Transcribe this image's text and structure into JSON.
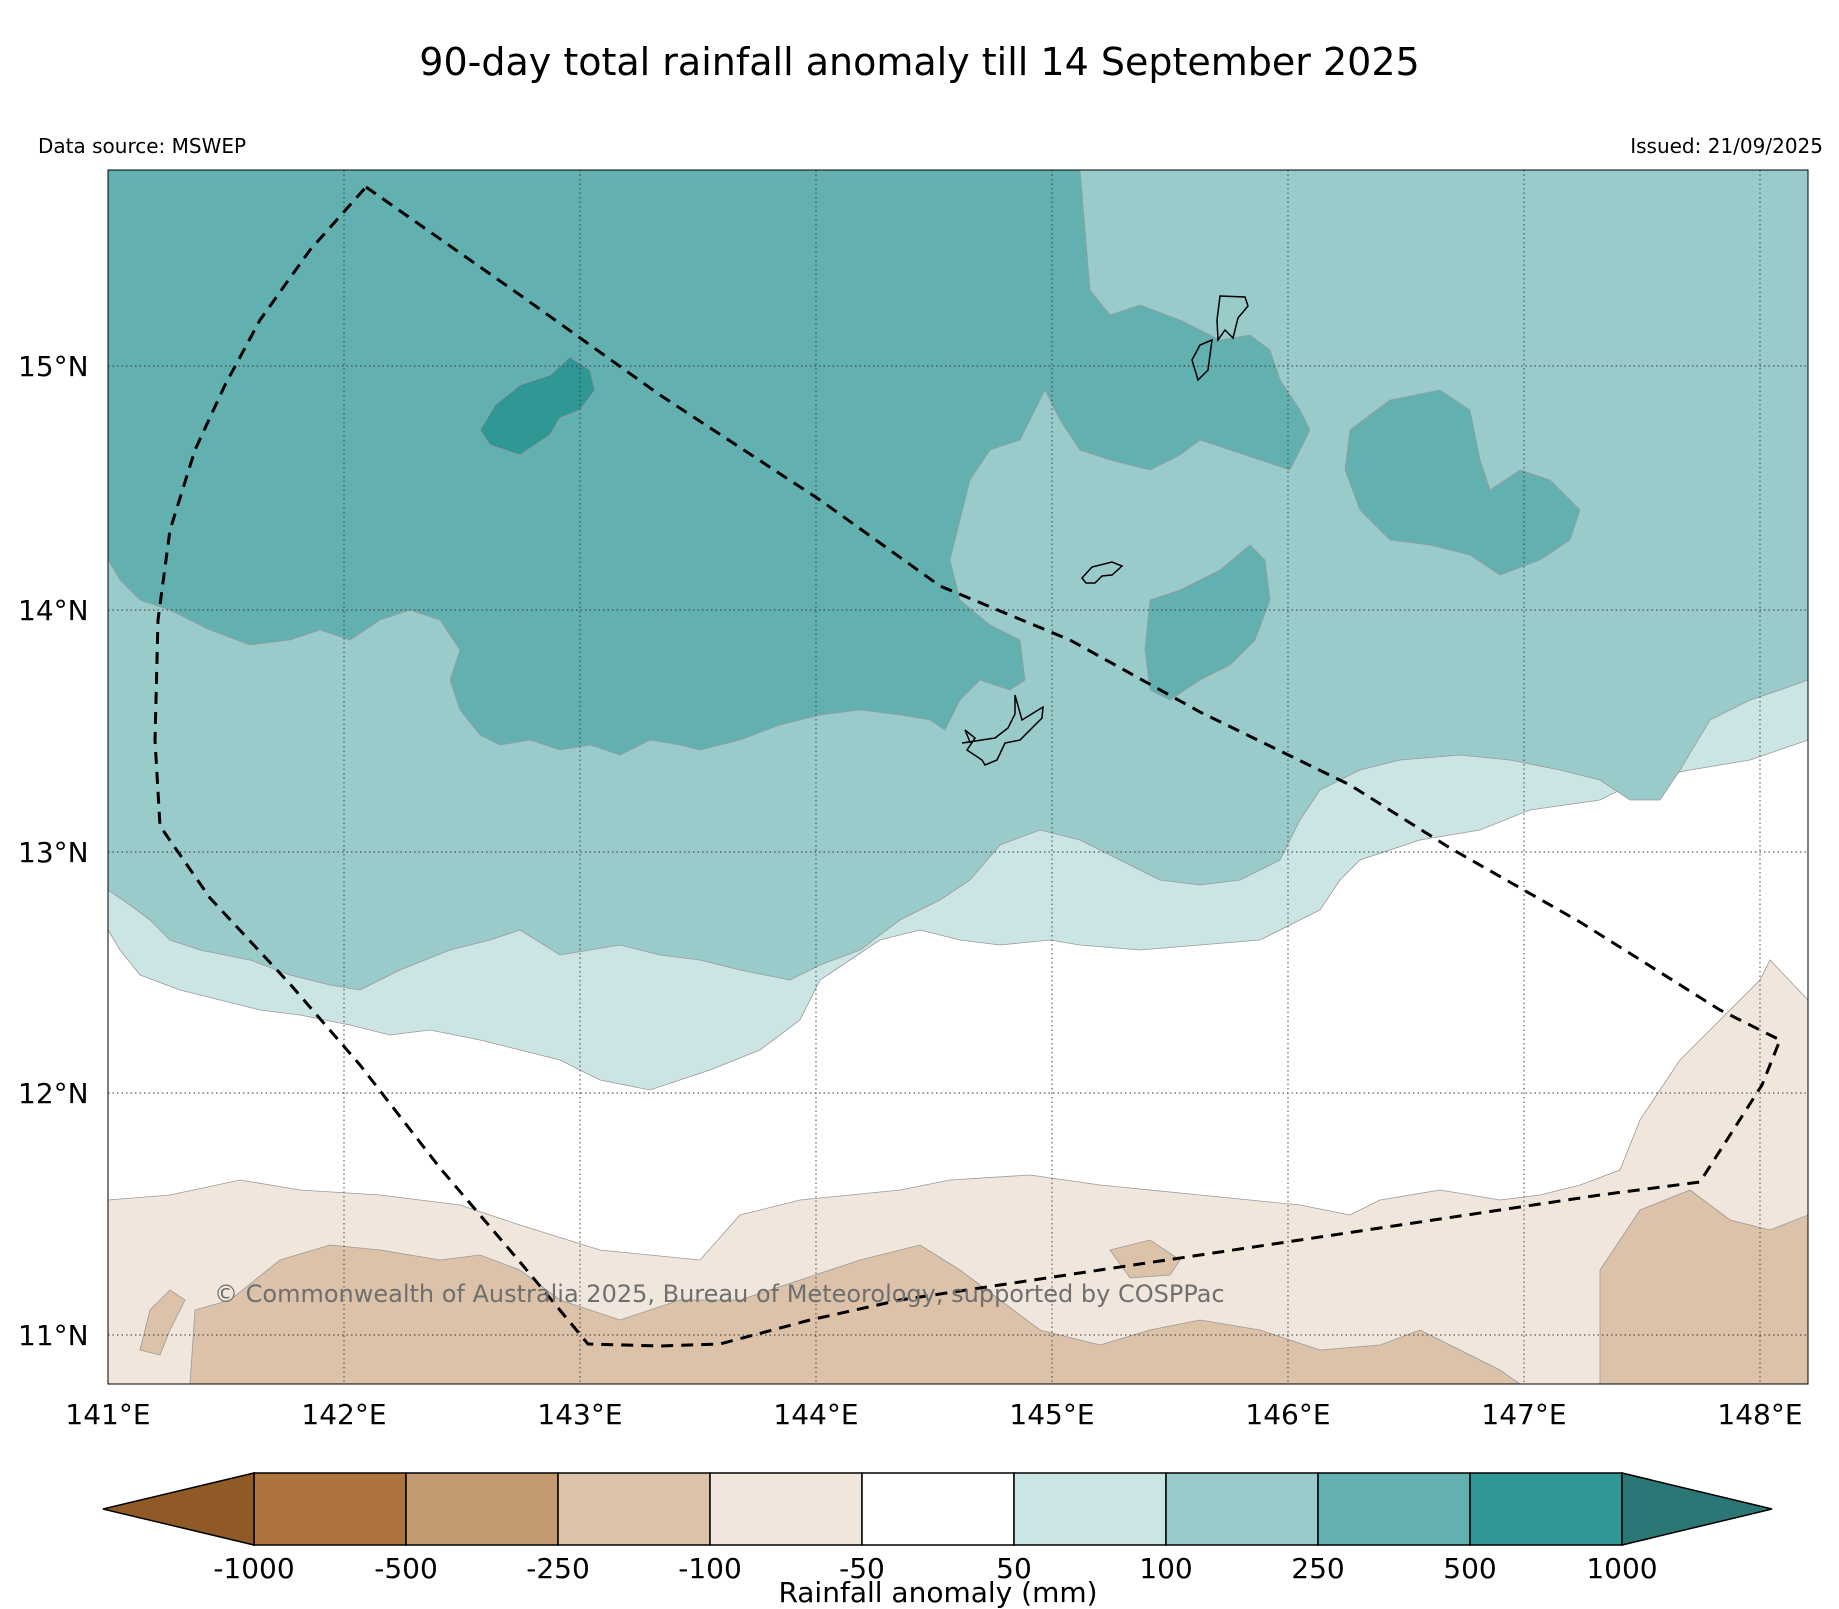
{
  "title": "90-day total rainfall anomaly till 14 September 2025",
  "data_source": "Data source: MSWEP",
  "issued": "Issued: 21/09/2025",
  "copyright": "© Commonwealth of Australia 2025, Bureau of Meteorology, supported by COSPPac",
  "lon_labels": [
    "141°E",
    "142°E",
    "143°E",
    "144°E",
    "145°E",
    "146°E",
    "147°E",
    "148°E"
  ],
  "lat_labels": [
    "15°N",
    "14°N",
    "13°N",
    "12°N",
    "11°N"
  ],
  "colorbar": {
    "label": "Rainfall anomaly (mm)",
    "ticks": [
      "-1000",
      "-500",
      "-250",
      "-100",
      "-50",
      "50",
      "100",
      "250",
      "500",
      "1000"
    ],
    "colors": {
      "below_min": "#8f5a26",
      "bins": [
        "#ad743d",
        "#c49a70",
        "#dbc2a8",
        "#f1e6dc",
        "#ffffff",
        "#cbe4e4",
        "#9acbcb",
        "#63b0b0",
        "#2f9794"
      ],
      "above_max": "#2a7775"
    }
  },
  "map": {
    "lon_range": [
      141,
      148.2
    ],
    "lat_range": [
      10.8,
      15.8
    ],
    "grid": true,
    "boundary_style": "dashed"
  }
}
